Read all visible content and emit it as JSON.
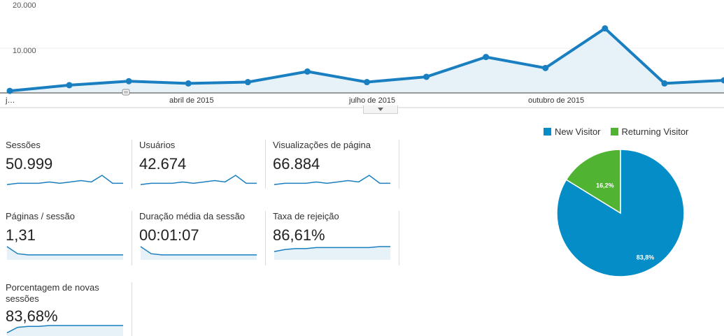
{
  "colors": {
    "line": "#1a7fc1",
    "area": "#e6f1f8",
    "new_visitor": "#058dc7",
    "returning_visitor": "#50b432"
  },
  "chart_data": [
    {
      "type": "area",
      "yticks": [
        "20.000",
        "10.000"
      ],
      "ylim": [
        0,
        20000
      ],
      "xticks": [
        "j…",
        "abril de 2015",
        "julho de 2015",
        "outubro de 2015"
      ],
      "series": [
        {
          "values": [
            300,
            1600,
            2500,
            2000,
            2300,
            4700,
            2300,
            3500,
            8000,
            5500,
            14500,
            2000,
            2700
          ]
        }
      ],
      "annotation_icon": "annotation-marker-icon"
    },
    {
      "type": "pie",
      "legend": [
        "New Visitor",
        "Returning Visitor"
      ],
      "values": [
        83.8,
        16.2
      ],
      "labels": [
        "83,8%",
        "16,2%"
      ]
    }
  ],
  "metrics": [
    {
      "label": "Sessões",
      "value": "50.999",
      "spark": [
        2,
        3,
        3,
        3,
        4,
        3,
        4,
        5,
        4,
        9,
        3,
        3
      ],
      "trend": "spike"
    },
    {
      "label": "Usuários",
      "value": "42.674",
      "spark": [
        2,
        3,
        3,
        3,
        4,
        3,
        4,
        5,
        4,
        9,
        3,
        3
      ],
      "trend": "spike"
    },
    {
      "label": "Visualizações de página",
      "value": "66.884",
      "spark": [
        2,
        3,
        3,
        3,
        4,
        3,
        4,
        5,
        4,
        9,
        3,
        3
      ],
      "trend": "spike"
    },
    {
      "label": "Páginas / sessão",
      "value": "1,31",
      "spark": [
        10,
        4,
        3,
        3,
        3,
        3,
        3,
        3,
        3,
        3,
        3,
        3
      ],
      "trend": "decay"
    },
    {
      "label": "Duração média da sessão",
      "value": "00:01:07",
      "spark": [
        10,
        4,
        3,
        3,
        3,
        3,
        3,
        3,
        3,
        3,
        3,
        3
      ],
      "trend": "decay"
    },
    {
      "label": "Taxa de rejeição",
      "value": "86,61%",
      "spark": [
        7,
        9,
        10,
        10,
        11,
        11,
        11,
        11,
        11,
        11,
        12,
        12
      ],
      "trend": "flat"
    },
    {
      "label": "Porcentagem de novas sessões",
      "value": "83,68%",
      "spark": [
        2,
        8,
        9,
        9,
        10,
        10,
        10,
        10,
        10,
        10,
        10,
        10
      ],
      "trend": "flat"
    }
  ]
}
